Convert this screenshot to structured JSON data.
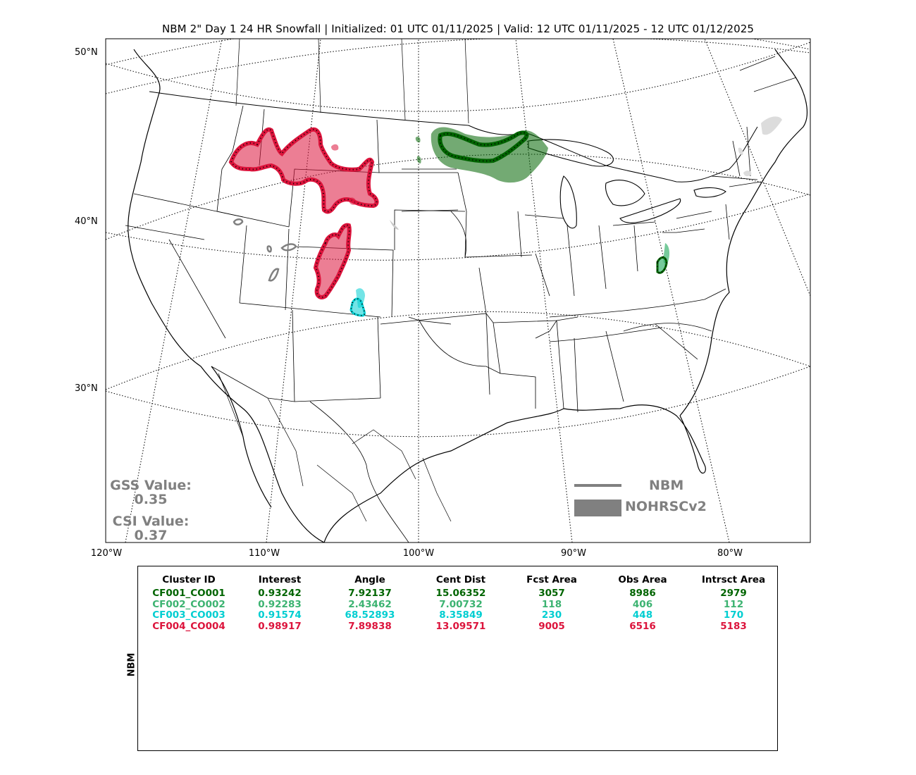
{
  "title": "NBM 2\" Day 1 24 HR Snowfall | Initialized: 01 UTC 01/11/2025 | Valid: 12 UTC 01/11/2025 - 12 UTC 01/12/2025",
  "lat_labels": [
    "50°N",
    "40°N",
    "30°N"
  ],
  "lon_labels": [
    "120°W",
    "110°W",
    "100°W",
    "90°W",
    "80°W"
  ],
  "stats": {
    "gss_label": "GSS Value:",
    "gss_value": "0.35",
    "csi_label": "CSI Value:",
    "csi_value": "0.37"
  },
  "legend": {
    "forecast_label": "NBM",
    "observed_label": "NOHRSCv2",
    "color": "#808080"
  },
  "table": {
    "ylabel": "NBM",
    "headers": [
      "Cluster ID",
      "Interest",
      "Angle",
      "Cent Dist",
      "Fcst Area",
      "Obs Area",
      "Intrsct Area"
    ],
    "rows": [
      {
        "color": "#006400",
        "cells": [
          "CF001_CO001",
          "0.93242",
          "7.92137",
          "15.06352",
          "3057",
          "8986",
          "2979"
        ]
      },
      {
        "color": "#3cb371",
        "cells": [
          "CF002_CO002",
          "0.92283",
          "2.43462",
          "7.00732",
          "118",
          "406",
          "112"
        ]
      },
      {
        "color": "#00ced1",
        "cells": [
          "CF003_CO003",
          "0.91574",
          "68.52893",
          "8.35849",
          "230",
          "448",
          "170"
        ]
      },
      {
        "color": "#dc143c",
        "cells": [
          "CF004_CO004",
          "0.98917",
          "7.89838",
          "13.09571",
          "9005",
          "6516",
          "5183"
        ]
      }
    ]
  },
  "colors": {
    "cluster1": "#006400",
    "cluster2": "#3cb371",
    "cluster3": "#00ced1",
    "cluster4": "#dc143c",
    "unmatched_obs": "#808080"
  }
}
